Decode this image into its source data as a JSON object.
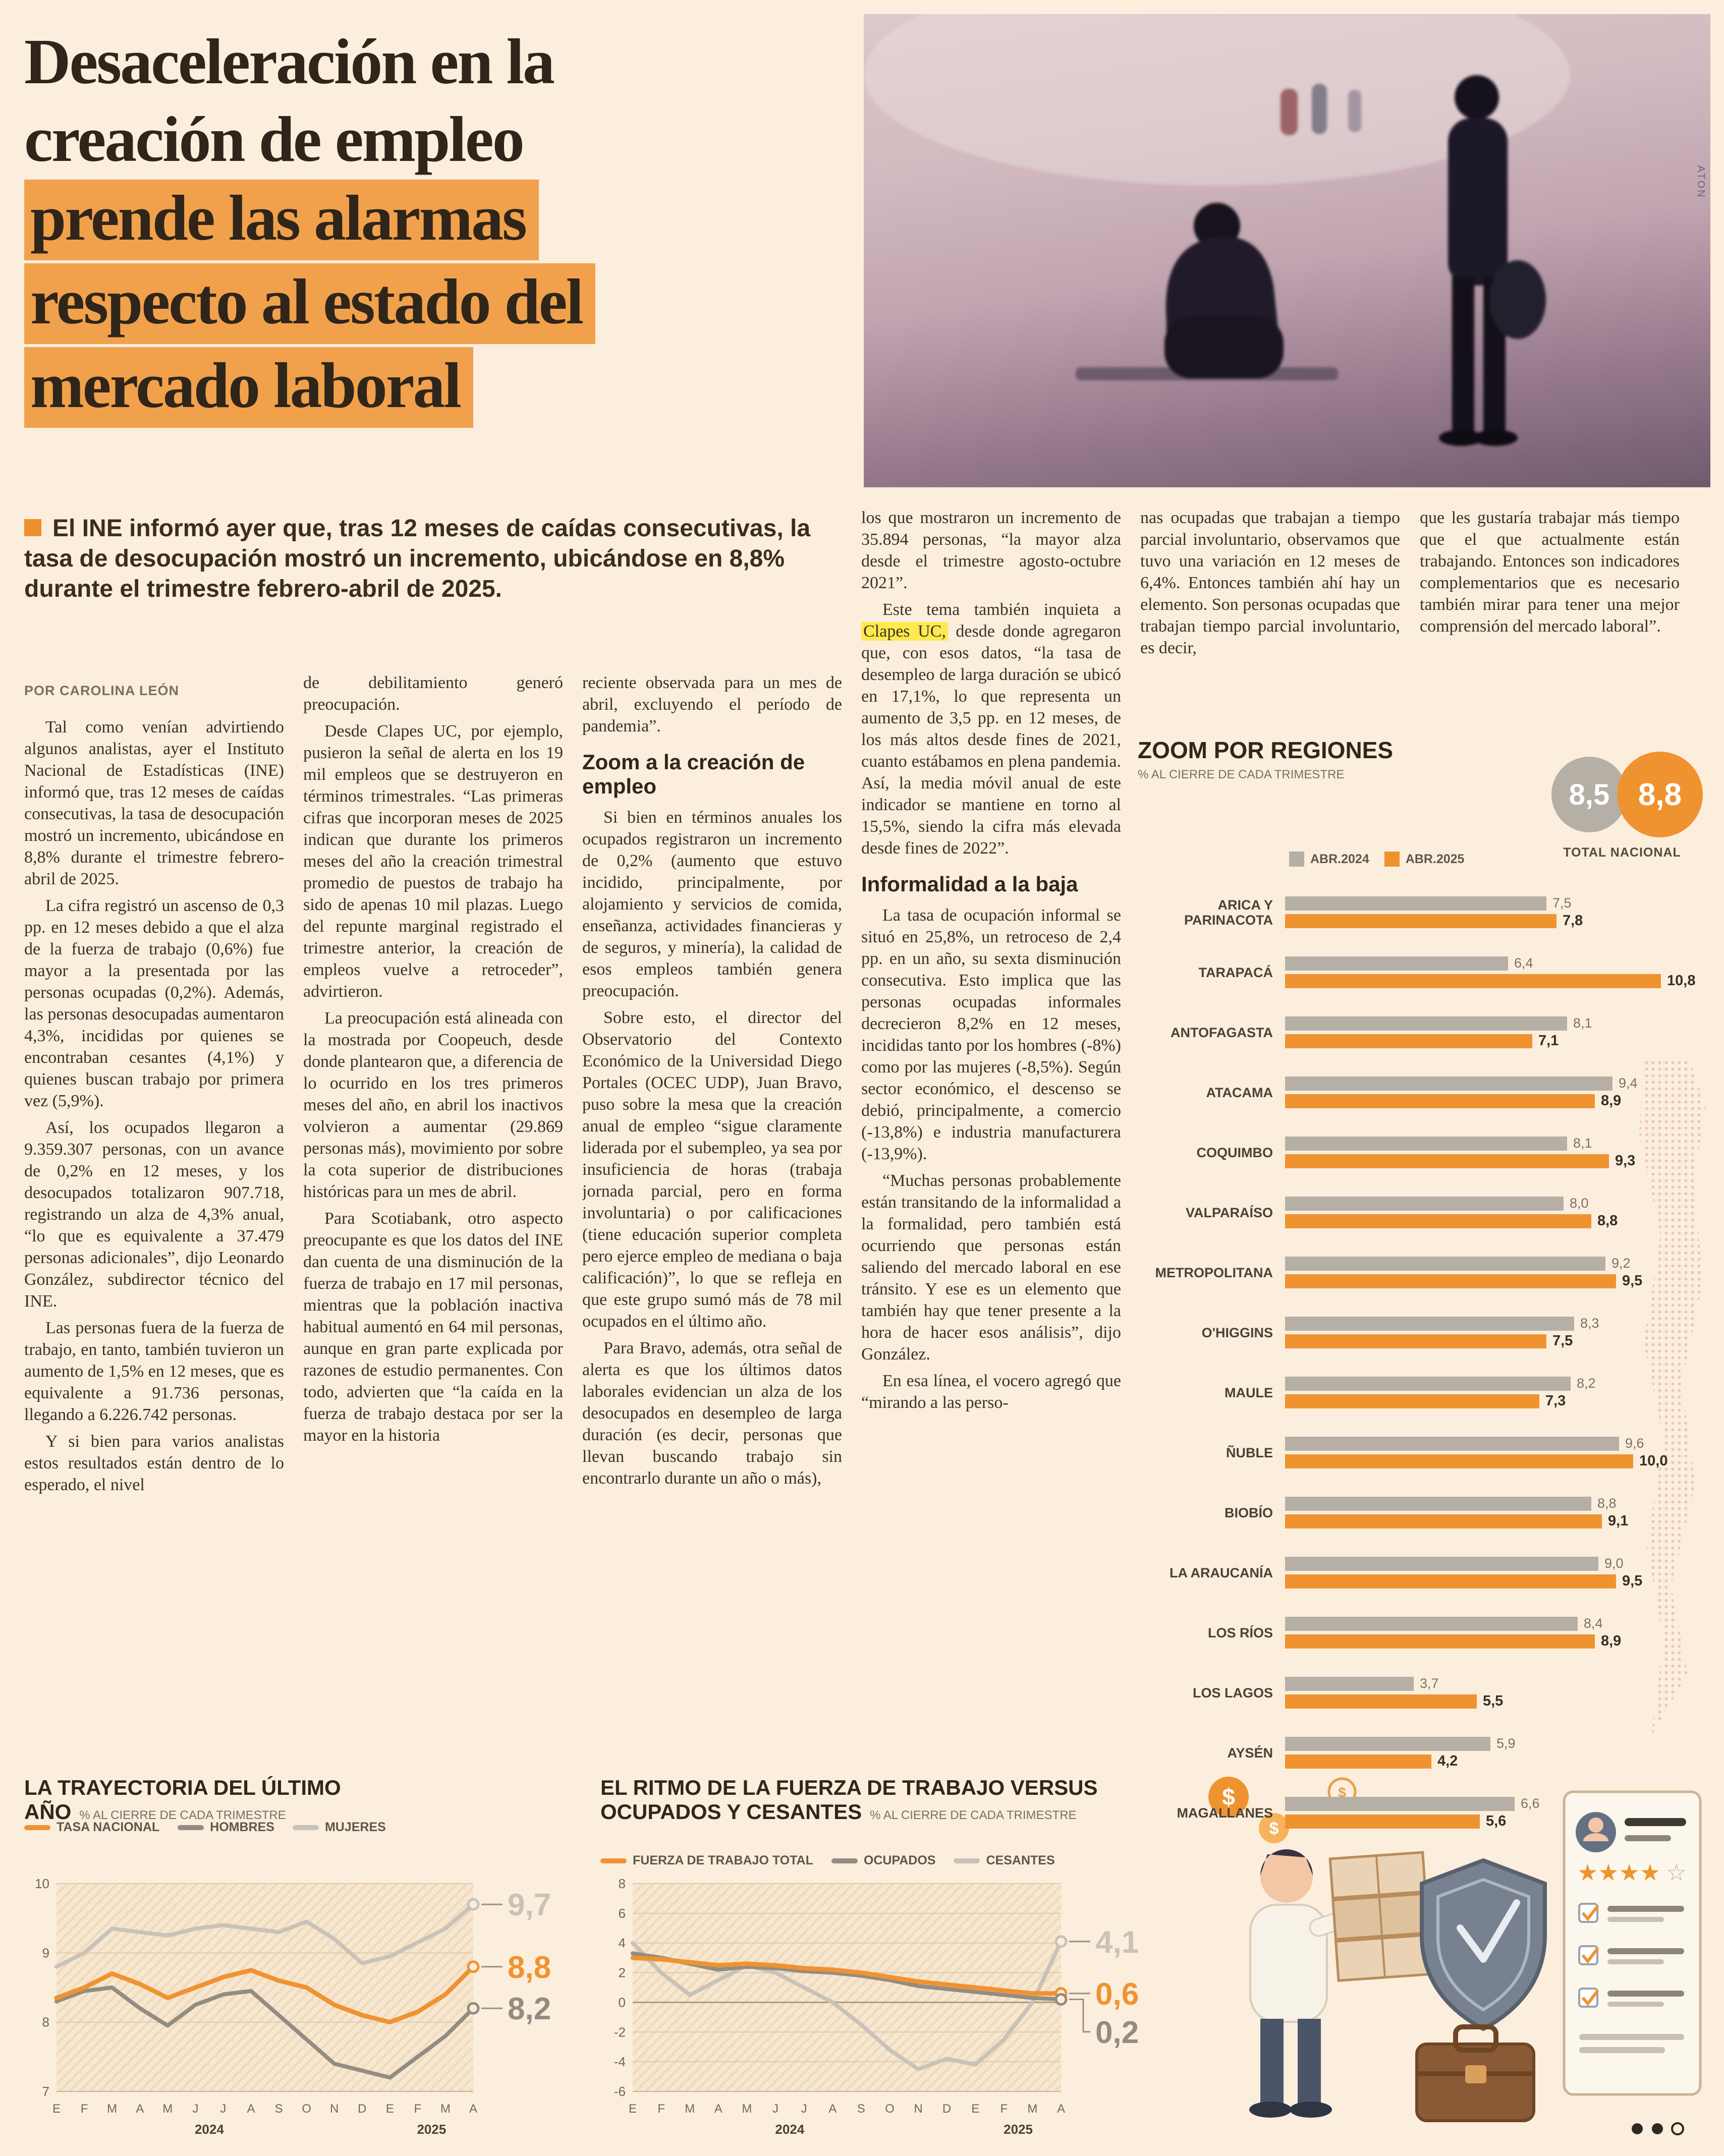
{
  "page": {
    "background": "#fbeedd",
    "accent_orange": "#ef9331",
    "headline_highlight": "#f1a14c",
    "text_highlight_yellow": "#ffe94f",
    "gray_bar": "#b5afa6"
  },
  "headline": {
    "lines": [
      {
        "text": "Desaceleración en la",
        "highlight": false
      },
      {
        "text": "creación de empleo",
        "highlight": false
      },
      {
        "text": "prende las alarmas",
        "highlight": true
      },
      {
        "text": "respecto al estado del",
        "highlight": true
      },
      {
        "text": "mercado laboral",
        "highlight": true
      }
    ]
  },
  "photo": {
    "credit": "ATON"
  },
  "lead": {
    "text": "El INE informó ayer que, tras 12 meses de caídas consecutivas, la tasa de desocupación mostró un incremento, ubicándose en 8,8% durante el trimestre febrero-abril de 2025."
  },
  "byline": "POR CAROLINA LEÓN",
  "icons": {
    "dollar": "$",
    "stars_filled": "★★★★",
    "star_empty": "☆"
  },
  "article": {
    "columns": [
      {
        "items": [
          {
            "p": "Tal como venían advirtiendo algunos analistas, ayer el Instituto Nacional de Estadísticas (INE) informó que, tras 12 meses de caídas consecutivas, la tasa de desocupación mostró un incremento, ubicándose en 8,8% durante el trimestre febrero-abril de 2025."
          },
          {
            "p": "La cifra registró un ascenso de 0,3 pp. en 12 meses debido a que el alza de la fuerza de trabajo (0,6%) fue mayor a la presentada por las personas ocupadas (0,2%). Además, las personas desocupadas aumentaron 4,3%, incididas por quienes se encontraban cesantes (4,1%) y quienes buscan trabajo por primera vez (5,9%)."
          },
          {
            "p": "Así, los ocupados llegaron a 9.359.307 personas, con un avance de 0,2% en 12 meses, y los desocupados totalizaron 907.718, registrando un alza de 4,3% anual, “lo que es equivalente a 37.479 personas adicionales”, dijo Leonardo González, subdirector técnico del INE."
          },
          {
            "p": "Las personas fuera de la fuerza de trabajo, en tanto, también tuvieron un aumento de 1,5% en 12 meses, que es equivalente a 91.736 personas, llegando a 6.226.742 personas."
          },
          {
            "p": "Y si bien para varios analistas estos resultados están dentro de lo esperado, el nivel"
          }
        ]
      },
      {
        "items": [
          {
            "p": "de debilitamiento generó preocupación.",
            "ni": true
          },
          {
            "p": "Desde Clapes UC, por ejemplo, pusieron la señal de alerta en los 19 mil empleos que se destruyeron en términos trimestrales. “Las primeras cifras que incorporan meses de 2025 indican que durante los primeros meses del año la creación trimestral promedio de puestos de trabajo ha sido de apenas 10 mil plazas. Luego del repunte marginal registrado el trimestre anterior, la creación de empleos vuelve a retroceder”, advirtieron."
          },
          {
            "p": "La preocupación está alineada con la mostrada por Coopeuch, desde donde plantearon que, a diferencia de lo ocurrido en los tres primeros meses del año, en abril los inactivos volvieron a aumentar (29.869 personas más), movimiento por sobre la cota superior de distribuciones históricas para un mes de abril."
          },
          {
            "p": "Para Scotiabank, otro aspecto preocupante es que los datos del INE dan cuenta de una disminución de la fuerza de trabajo en 17 mil personas, mientras que la población inactiva habitual aumentó en 64 mil personas, aunque en gran parte explicada por razones de estudio permanentes. Con todo, advierten que “la caída en la fuerza de trabajo destaca por ser la mayor en la historia"
          }
        ]
      },
      {
        "items": [
          {
            "p": "reciente observada para un mes de abril, excluyendo el período de pandemia”.",
            "ni": true
          },
          {
            "h": "Zoom a la creación de empleo"
          },
          {
            "p": "Si bien en términos anuales los ocupados registraron un incremento de 0,2% (aumento que estuvo incidido, principalmente, por alojamiento y servicios de comida, enseñanza, actividades financieras y de seguros, y minería), la calidad de esos empleos también genera preocupación."
          },
          {
            "p": "Sobre esto, el director del Observatorio del Contexto Económico de la Universidad Diego Portales (OCEC UDP), Juan Bravo, puso sobre la mesa que la creación anual de empleo “sigue claramente liderada por el subempleo, ya sea por insuficiencia de horas (trabaja jornada parcial, pero en forma involuntaria) o por calificaciones (tiene educación superior completa pero ejerce empleo de mediana o baja calificación)”, lo que se refleja en que este grupo sumó más de 78 mil ocupados en el último año."
          },
          {
            "p": "Para Bravo, además, otra señal de alerta es que los últimos datos laborales evidencian un alza de los desocupados en desempleo de larga duración (es decir, personas que llevan buscando trabajo sin encontrarlo durante un año o más),"
          }
        ]
      },
      {
        "items": [
          {
            "p": "los que mostraron un incremento de 35.894 personas, “la mayor alza desde el trimestre agosto-octubre 2021”.",
            "ni": true
          },
          {
            "parts": [
              {
                "t": "Este tema también inquieta a "
              },
              {
                "t": "Clapes UC,",
                "hl": true
              },
              {
                "t": " desde donde agregaron que, con esos datos, “la tasa de desempleo de larga duración se ubicó en 17,1%, lo que representa un aumento de 3,5 pp. en 12 meses, de los más altos desde fines de 2021, cuanto estábamos en plena pandemia. Así, la media móvil anual de este indicador se mantiene en torno al 15,5%, siendo la cifra más elevada desde fines de 2022”."
              }
            ]
          },
          {
            "h": "Informalidad a la baja"
          },
          {
            "p": "La tasa de ocupación informal se situó en 25,8%, un retroceso de 2,4 pp. en un año, su sexta disminución consecutiva. Esto implica que las personas ocupadas informales decrecieron 8,2% en 12 meses, incididas tanto por los hombres (-8%) como por las mujeres (-8,5%). Según sector económico, el descenso se debió, principalmente, a comercio (-13,8%) e industria manufacturera (-13,9%)."
          },
          {
            "p": "“Muchas personas probablemente están transitando de la informalidad a la formalidad, pero también está ocurriendo que personas están saliendo del mercado laboral en ese tránsito. Y ese es un elemento que también hay que tener presente a la hora de hacer esos análisis”, dijo González."
          },
          {
            "p": "En esa línea, el vocero agregó que “mirando a las perso-"
          }
        ]
      },
      {
        "items": [
          {
            "p": "nas ocupadas que trabajan a tiempo parcial involuntario, observamos que tuvo una variación en 12 meses de 6,4%. Entonces también ahí hay un elemento. Son personas ocupadas que trabajan tiempo parcial involuntario, es decir,",
            "ni": true
          }
        ]
      },
      {
        "items": [
          {
            "p": "que les gustaría trabajar más tiempo que el que actualmente están trabajando. Entonces son indicadores complementarios que es necesario también mirar para tener una mejor comprensión del mercado laboral”.",
            "ni": true
          }
        ]
      }
    ]
  },
  "chart_data": [
    {
      "type": "bar",
      "orientation": "horizontal",
      "title": "ZOOM POR REGIONES",
      "subtitle": "% AL CIERRE DE CADA TRIMESTRE",
      "xmax": 11,
      "total": {
        "label": "TOTAL NACIONAL",
        "values": [
          8.5,
          8.8
        ],
        "display": [
          "8,5",
          "8,8"
        ]
      },
      "categories": [
        "ARICA Y PARINACOTA",
        "TARAPACÁ",
        "ANTOFAGASTA",
        "ATACAMA",
        "COQUIMBO",
        "VALPARAÍSO",
        "METROPOLITANA",
        "O'HIGGINS",
        "MAULE",
        "ÑUBLE",
        "BIOBÍO",
        "LA ARAUCANÍA",
        "LOS RÍOS",
        "LOS LAGOS",
        "AYSÉN",
        "MAGALLANES"
      ],
      "series": [
        {
          "name": "ABR.2024",
          "color": "#b5afa6",
          "values": [
            7.5,
            6.4,
            8.1,
            9.4,
            8.1,
            8.0,
            9.2,
            8.3,
            8.2,
            9.6,
            8.8,
            9.0,
            8.4,
            3.7,
            5.9,
            6.6
          ]
        },
        {
          "name": "ABR.2025",
          "color": "#ef9331",
          "values": [
            7.8,
            10.8,
            7.1,
            8.9,
            9.3,
            8.8,
            9.5,
            7.5,
            7.3,
            10.0,
            9.1,
            9.5,
            8.9,
            5.5,
            4.2,
            5.6
          ]
        }
      ]
    },
    {
      "type": "line",
      "title": "LA TRAYECTORIA DEL ÚLTIMO AÑO",
      "subtitle": "% AL CIERRE DE CADA TRIMESTRE",
      "x_ticks": [
        "E",
        "F",
        "M",
        "A",
        "M",
        "J",
        "J",
        "A",
        "S",
        "O",
        "N",
        "D",
        "E",
        "F",
        "M",
        "A"
      ],
      "years": [
        {
          "label": "2024",
          "from": 0,
          "to": 11
        },
        {
          "label": "2025",
          "from": 12,
          "to": 15
        }
      ],
      "ylim": [
        7,
        10
      ],
      "yticks": [
        10,
        9,
        8,
        7
      ],
      "grid": true,
      "legend_position": "top",
      "series": [
        {
          "name": "TASA NACIONAL",
          "color": "#ef9331",
          "z": 3,
          "end_label": "8,8",
          "values": [
            8.35,
            8.5,
            8.7,
            8.55,
            8.35,
            8.5,
            8.65,
            8.75,
            8.6,
            8.5,
            8.25,
            8.1,
            8.0,
            8.15,
            8.4,
            8.8
          ]
        },
        {
          "name": "HOMBRES",
          "color": "#938c82",
          "z": 2,
          "end_label": "8,2",
          "values": [
            8.3,
            8.45,
            8.5,
            8.2,
            7.95,
            8.25,
            8.4,
            8.45,
            8.1,
            7.75,
            7.4,
            7.3,
            7.2,
            7.5,
            7.8,
            8.2
          ]
        },
        {
          "name": "MUJERES",
          "color": "#c8c2b8",
          "z": 1,
          "end_label": "9,7",
          "values": [
            8.8,
            9.0,
            9.35,
            9.3,
            9.25,
            9.35,
            9.4,
            9.35,
            9.3,
            9.45,
            9.2,
            8.85,
            8.95,
            9.15,
            9.35,
            9.7
          ]
        }
      ]
    },
    {
      "type": "line",
      "title": "EL RITMO DE LA FUERZA DE TRABAJO VERSUS OCUPADOS Y CESANTES",
      "subtitle": "% AL CIERRE DE CADA TRIMESTRE",
      "x_ticks": [
        "E",
        "F",
        "M",
        "A",
        "M",
        "J",
        "J",
        "A",
        "S",
        "O",
        "N",
        "D",
        "E",
        "F",
        "M",
        "A"
      ],
      "years": [
        {
          "label": "2024",
          "from": 0,
          "to": 11
        },
        {
          "label": "2025",
          "from": 12,
          "to": 15
        }
      ],
      "ylim": [
        -6,
        8
      ],
      "yticks": [
        8,
        6,
        4,
        2,
        0,
        -2,
        -4,
        -6
      ],
      "grid": true,
      "legend_position": "top",
      "series": [
        {
          "name": "FUERZA DE TRABAJO TOTAL",
          "color": "#ef9331",
          "z": 3,
          "end_label": "0,6",
          "values": [
            3.0,
            2.9,
            2.7,
            2.5,
            2.6,
            2.5,
            2.3,
            2.2,
            2.0,
            1.7,
            1.4,
            1.2,
            1.0,
            0.8,
            0.6,
            0.6
          ]
        },
        {
          "name": "OCUPADOS",
          "color": "#938c82",
          "z": 2,
          "end_label": "0,2",
          "values": [
            3.3,
            3.0,
            2.6,
            2.2,
            2.4,
            2.3,
            2.1,
            2.0,
            1.8,
            1.5,
            1.1,
            0.9,
            0.7,
            0.5,
            0.3,
            0.2
          ]
        },
        {
          "name": "CESANTES",
          "color": "#c8c2b8",
          "z": 1,
          "end_label": "4,1",
          "values": [
            4.0,
            2.0,
            0.5,
            1.5,
            2.5,
            2.0,
            1.0,
            0.0,
            -1.5,
            -3.2,
            -4.5,
            -3.8,
            -4.2,
            -2.5,
            0.0,
            4.1
          ]
        }
      ]
    }
  ]
}
